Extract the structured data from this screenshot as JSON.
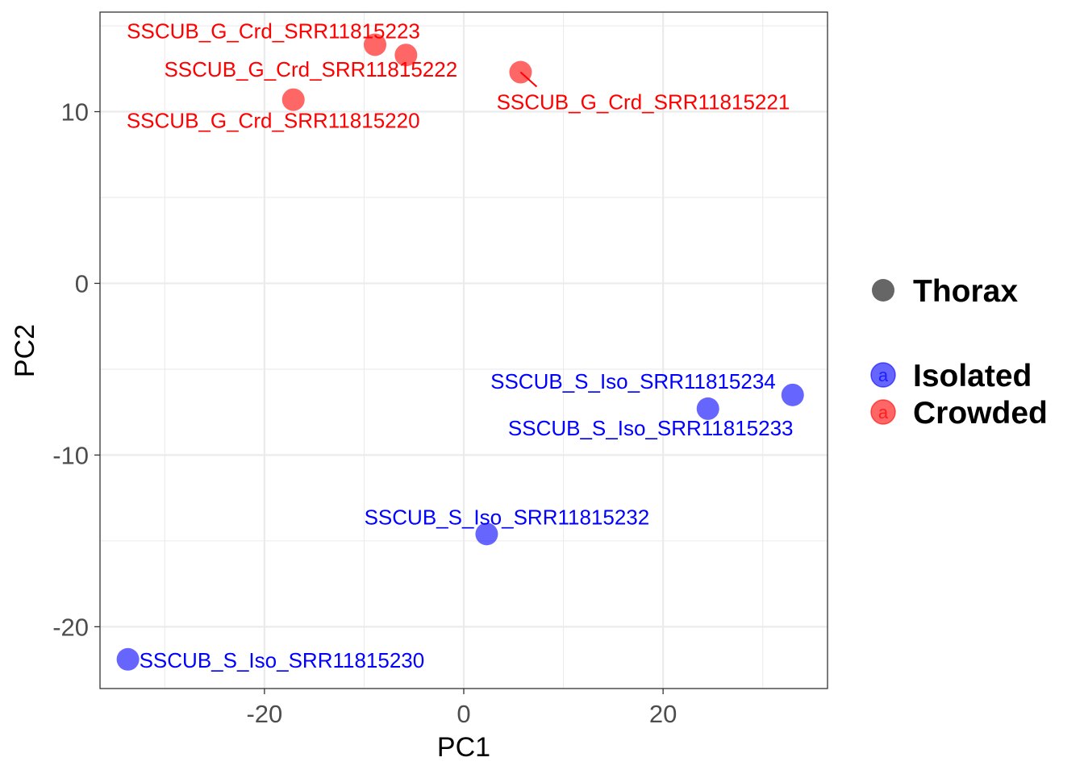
{
  "chart_data": {
    "type": "scatter",
    "title": "",
    "xlabel": "PC1",
    "ylabel": "PC2",
    "xlim": [
      -36.5,
      36.5
    ],
    "ylim": [
      -23.6,
      15.8
    ],
    "xticks": [
      -20,
      0,
      20
    ],
    "yticks": [
      -20,
      -10,
      0,
      10
    ],
    "grid": true,
    "legend_placement": "right",
    "shape_legend": [
      {
        "label": "Thorax",
        "color": "#666666"
      }
    ],
    "color_legend": [
      {
        "label": "Isolated",
        "color": "#0000ff"
      },
      {
        "label": "Crowded",
        "color": "#ff0000"
      }
    ],
    "series": [
      {
        "name": "Crowded",
        "color": "#ff0000",
        "points": [
          {
            "label": "SSCUB_G_Crd_SRR11815223",
            "x": -8.9,
            "y": 13.9
          },
          {
            "label": "SSCUB_G_Crd_SRR11815222",
            "x": -5.8,
            "y": 13.3
          },
          {
            "label": "SSCUB_G_Crd_SRR11815221",
            "x": 5.7,
            "y": 12.3
          },
          {
            "label": "SSCUB_G_Crd_SRR11815220",
            "x": -17.1,
            "y": 10.7
          }
        ]
      },
      {
        "name": "Isolated",
        "color": "#0000ff",
        "points": [
          {
            "label": "SSCUB_S_Iso_SRR11815234",
            "x": 33.0,
            "y": -6.5
          },
          {
            "label": "SSCUB_S_Iso_SRR11815233",
            "x": 24.5,
            "y": -7.3
          },
          {
            "label": "SSCUB_S_Iso_SRR11815232",
            "x": 2.3,
            "y": -14.6
          },
          {
            "label": "SSCUB_S_Iso_SRR11815230",
            "x": -33.7,
            "y": -21.9
          }
        ]
      }
    ]
  }
}
